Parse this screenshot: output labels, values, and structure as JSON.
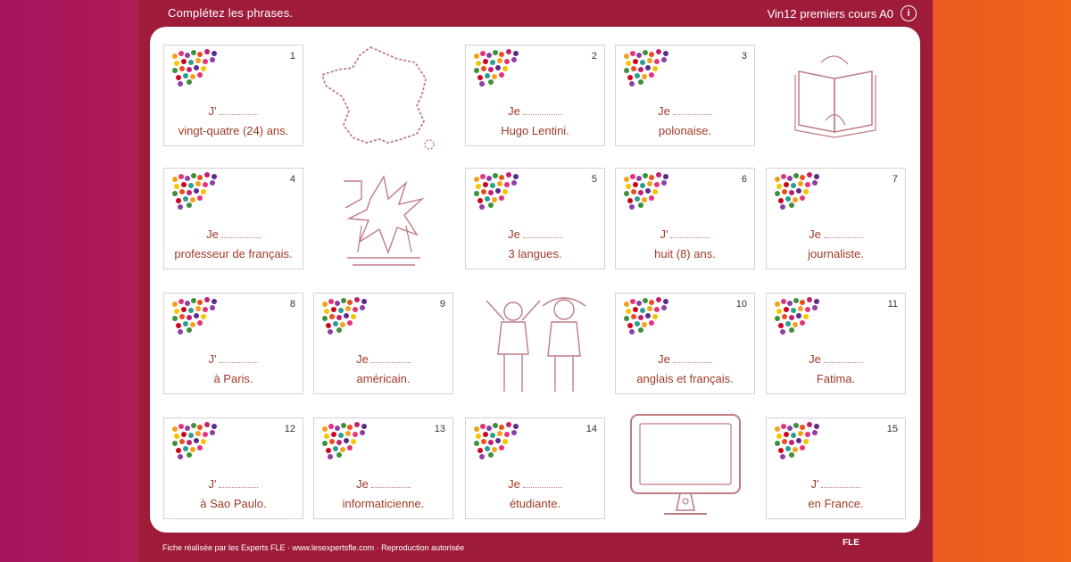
{
  "header": {
    "instruction": "Complétez les phrases.",
    "course": "Vin12 premiers cours A0"
  },
  "cards": [
    {
      "num": "1",
      "subject": "J'",
      "complement": "vingt-quatre (24) ans."
    },
    {
      "num": "2",
      "subject": "Je",
      "complement": "Hugo Lentini."
    },
    {
      "num": "3",
      "subject": "Je",
      "complement": "polonaise."
    },
    {
      "num": "4",
      "subject": "Je",
      "complement": "professeur de français."
    },
    {
      "num": "5",
      "subject": "Je",
      "complement": "3 langues."
    },
    {
      "num": "6",
      "subject": "J'",
      "complement": "huit (8) ans."
    },
    {
      "num": "7",
      "subject": "Je",
      "complement": "journaliste."
    },
    {
      "num": "8",
      "subject": "J'",
      "complement": "à Paris."
    },
    {
      "num": "9",
      "subject": "Je",
      "complement": "américain."
    },
    {
      "num": "10",
      "subject": "Je",
      "complement": "anglais et français."
    },
    {
      "num": "11",
      "subject": "Je",
      "complement": "Fatima."
    },
    {
      "num": "12",
      "subject": "J'",
      "complement": "à Sao Paulo."
    },
    {
      "num": "13",
      "subject": "Je",
      "complement": "informaticienne."
    },
    {
      "num": "14",
      "subject": "Je",
      "complement": "étudiante."
    },
    {
      "num": "15",
      "subject": "J'",
      "complement": "en France."
    }
  ],
  "footer": {
    "credit": "Fiche réalisée par les Experts FLE · www.lesexpertsfle.com · Reproduction autorisée",
    "brand": "FLE"
  },
  "colors": {
    "frame": "#9e1c3a",
    "text_accent": "#a03a26",
    "gradient_left": "#a3135f",
    "gradient_right": "#f26419"
  }
}
